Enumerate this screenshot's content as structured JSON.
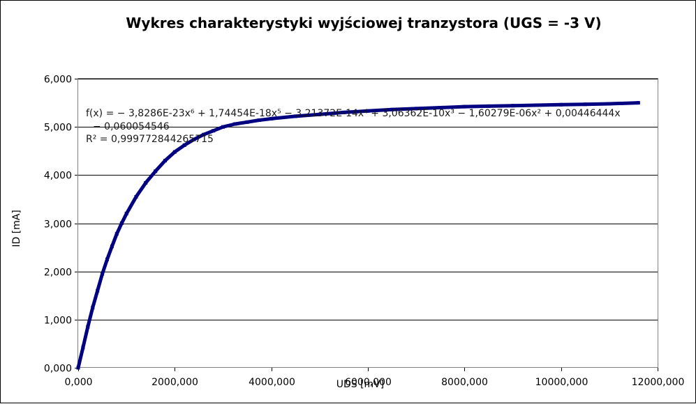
{
  "chart_data": {
    "type": "scatter",
    "title": "Wykres charakterystyki wyjściowej tranzystora (UGS = -3 V)",
    "xlabel": "UDS [mV]",
    "ylabel": "ID [mA]",
    "xlim": [
      0,
      12000
    ],
    "ylim": [
      0,
      6
    ],
    "x_ticks": [
      0,
      2000,
      4000,
      6000,
      8000,
      10000,
      12000
    ],
    "y_ticks": [
      0,
      1,
      2,
      3,
      4,
      5,
      6
    ],
    "x_tick_labels": [
      "0,000",
      "2000,000",
      "4000,000",
      "6000,000",
      "8000,000",
      "10000,000",
      "12000,000"
    ],
    "y_tick_labels": [
      "0,000",
      "1,000",
      "2,000",
      "3,000",
      "4,000",
      "5,000",
      "6,000"
    ],
    "grid": "horizontal",
    "legend": "none",
    "series_color": "#000080",
    "series": [
      {
        "x": [
          0,
          100,
          200,
          300,
          400,
          500,
          600,
          700,
          800,
          900,
          1000,
          1200,
          1400,
          1600,
          1800,
          2000,
          2200,
          2400,
          2600,
          2800,
          3000,
          3250,
          3500,
          3750,
          4000,
          4500,
          5000,
          5500,
          6000,
          6500,
          7000,
          7500,
          8000,
          8500,
          9000,
          9500,
          10000,
          10500,
          11000,
          11600
        ],
        "y": [
          0.0,
          0.42,
          0.85,
          1.25,
          1.6,
          1.95,
          2.25,
          2.52,
          2.78,
          3.0,
          3.2,
          3.55,
          3.84,
          4.08,
          4.3,
          4.48,
          4.62,
          4.74,
          4.84,
          4.92,
          5.0,
          5.06,
          5.1,
          5.14,
          5.17,
          5.22,
          5.26,
          5.3,
          5.33,
          5.36,
          5.38,
          5.4,
          5.42,
          5.43,
          5.44,
          5.45,
          5.46,
          5.47,
          5.48,
          5.5
        ]
      }
    ],
    "trendline": {
      "type": "polynomial",
      "order": 6,
      "equation_line1": "f(x) = − 3,8286E-23x⁶ + 1,74454E-18x⁵ − 3,21372E-14x⁴ + 3,06362E-10x³ − 1,60279E-06x² + 0,00446444x",
      "equation_line2": "− 0,060054546",
      "r_squared": "R² = 0,999772844265715"
    }
  }
}
